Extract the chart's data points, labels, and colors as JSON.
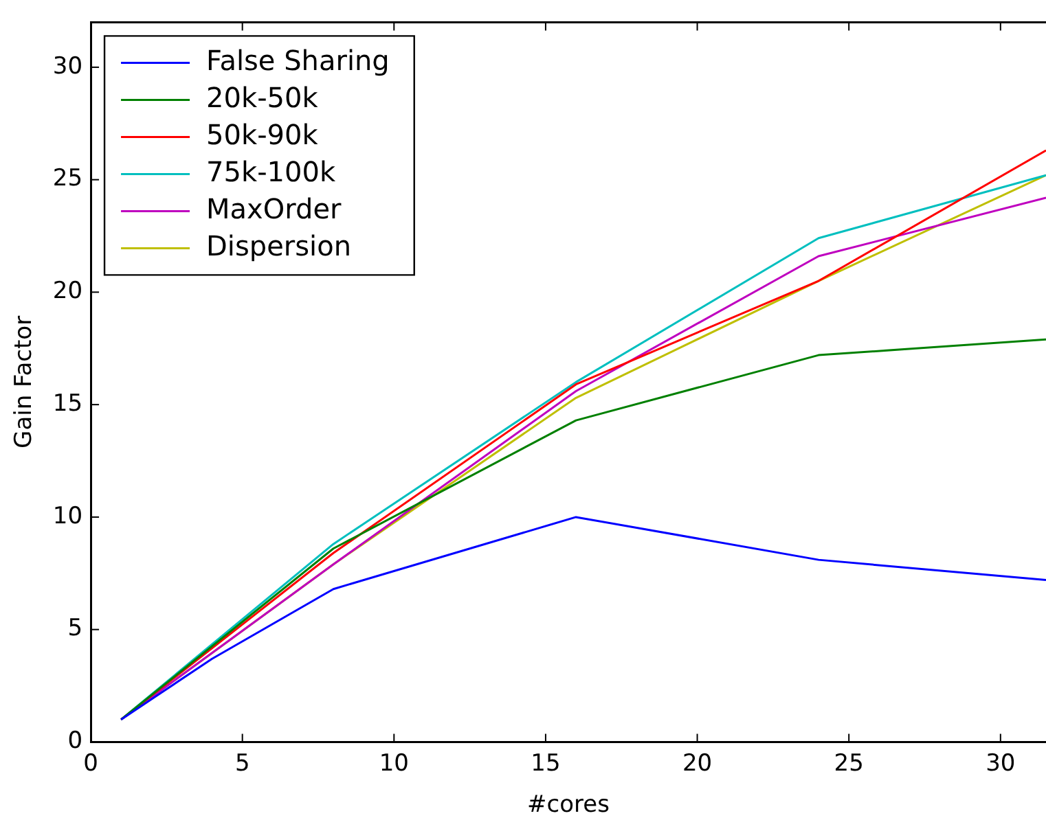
{
  "chart_data": {
    "type": "line",
    "xlabel": "#cores",
    "ylabel": "Gain Factor",
    "xlim": [
      0,
      31.5
    ],
    "ylim": [
      0,
      32
    ],
    "xticks": [
      0,
      5,
      10,
      15,
      20,
      25,
      30
    ],
    "yticks": [
      0,
      5,
      10,
      15,
      20,
      25,
      30
    ],
    "legend": "top left",
    "grid": false,
    "marker": "none",
    "line_style": "solid",
    "series": [
      {
        "name": "False Sharing",
        "color": "#0000ff",
        "x": [
          1,
          4,
          8,
          16,
          24,
          31.5
        ],
        "values": [
          1,
          3.7,
          6.8,
          10.0,
          8.1,
          7.2
        ]
      },
      {
        "name": "20k-50k",
        "color": "#008000",
        "x": [
          1,
          8,
          16,
          24,
          31.5
        ],
        "values": [
          1,
          8.6,
          14.3,
          17.2,
          17.9
        ]
      },
      {
        "name": "50k-90k",
        "color": "#ff0000",
        "x": [
          1,
          8,
          16,
          24,
          31.5
        ],
        "values": [
          1,
          8.4,
          15.9,
          20.5,
          26.3
        ]
      },
      {
        "name": "75k-100k",
        "color": "#00bfbf",
        "x": [
          1,
          8,
          16,
          24,
          31.5
        ],
        "values": [
          1,
          8.8,
          16.0,
          22.4,
          25.2
        ]
      },
      {
        "name": "MaxOrder",
        "color": "#bf00bf",
        "x": [
          1,
          8,
          16,
          24,
          31.5
        ],
        "values": [
          1,
          7.9,
          15.6,
          21.6,
          24.2
        ]
      },
      {
        "name": "Dispersion",
        "color": "#bfbf00",
        "x": [
          1,
          8,
          16,
          24,
          31.5
        ],
        "values": [
          1,
          7.9,
          15.3,
          20.5,
          25.2
        ]
      }
    ]
  }
}
